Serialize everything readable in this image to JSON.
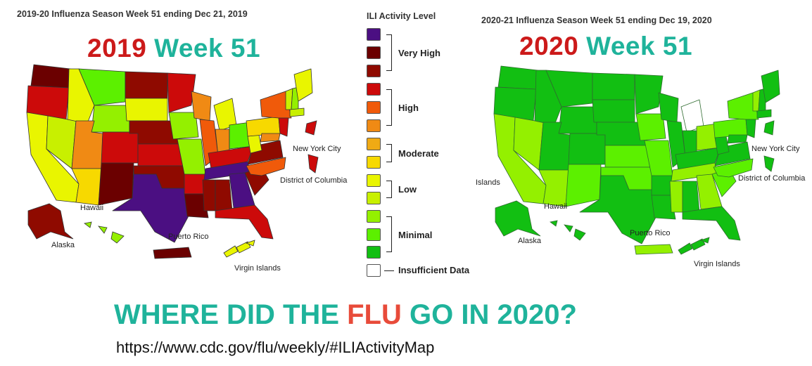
{
  "left_panel": {
    "caption": "2019-20 Influenza Season Week 51 ending Dec 21, 2019",
    "year": "2019",
    "week": "Week 51",
    "labels": {
      "new_york_city": "New York City",
      "district_of_columbia": "District of Columbia",
      "hawaii": "Hawaii",
      "alaska": "Alaska",
      "puerto_rico": "Puerto Rico",
      "virgin_islands": "Virgin Islands"
    }
  },
  "right_panel": {
    "caption": "2020-21 Influenza Season Week 51 ending Dec 19, 2020",
    "year": "2020",
    "week": "Week 51",
    "labels": {
      "new_york_city": "New York City",
      "district_of_columbia": "District of Columbia",
      "islands": "Islands",
      "hawaii": "Hawaii",
      "alaska": "Alaska",
      "puerto_rico": "Puerto Rico",
      "virgin_islands": "Virgin Islands"
    }
  },
  "legend": {
    "title": "ILI Activity Level",
    "swatches": [
      "#4b0f82",
      "#6b0000",
      "#8f0a00",
      "#cc0a0a",
      "#f05a0a",
      "#f08a14",
      "#f0aa14",
      "#f7d900",
      "#e9f500",
      "#c8f000",
      "#94f000",
      "#5cf000",
      "#12bf12",
      "#ffffff"
    ],
    "groups": [
      "Very High",
      "High",
      "Moderate",
      "Low",
      "Minimal"
    ],
    "insufficient": "Insufficient Data"
  },
  "headline": {
    "part1": "WHERE DID THE ",
    "flu": "FLU",
    "part2": " GO IN 2020?"
  },
  "source_url": "https://www.cdc.gov/flu/weekly/#ILIActivityMap",
  "colors": {
    "year_red": "#cc1a1a",
    "teal": "#1fb39b",
    "flu_red": "#e84b3a",
    "very_high_purple": "#4b0f82",
    "minimal_green": "#12bf12"
  }
}
